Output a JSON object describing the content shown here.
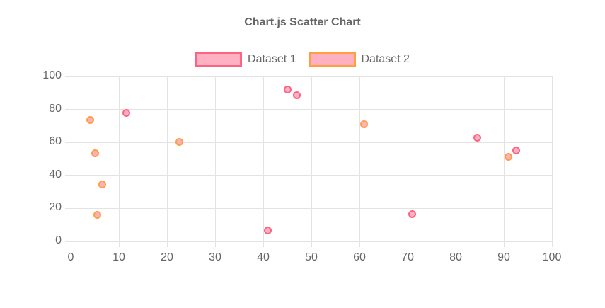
{
  "chart_data": {
    "type": "scatter",
    "title": "Chart.js Scatter Chart",
    "xlabel": "",
    "ylabel": "",
    "xlim": [
      0,
      100
    ],
    "ylim": [
      0,
      100
    ],
    "x_ticks": [
      0,
      10,
      20,
      30,
      40,
      50,
      60,
      70,
      80,
      90,
      100
    ],
    "y_ticks": [
      0,
      20,
      40,
      60,
      80,
      100
    ],
    "grid": true,
    "legend_position": "top",
    "title_color": "#666666",
    "tick_label_color": "#666666",
    "grid_color": "#e3e3e3",
    "series": [
      {
        "name": "Dataset 1",
        "border_color": "#FF6384",
        "fill_color": "#FFB1C1",
        "points": [
          {
            "x": 11.5,
            "y": 78
          },
          {
            "x": 41,
            "y": 6.5
          },
          {
            "x": 45,
            "y": 92
          },
          {
            "x": 47,
            "y": 88.5
          },
          {
            "x": 71,
            "y": 16.5
          },
          {
            "x": 84.5,
            "y": 63
          },
          {
            "x": 92.5,
            "y": 55
          }
        ]
      },
      {
        "name": "Dataset 2",
        "border_color": "#FF9F40",
        "fill_color": "#FFB1C1",
        "points": [
          {
            "x": 4,
            "y": 73.5
          },
          {
            "x": 5,
            "y": 53.5
          },
          {
            "x": 5.5,
            "y": 16
          },
          {
            "x": 6.5,
            "y": 34.5
          },
          {
            "x": 22.5,
            "y": 60.5
          },
          {
            "x": 61,
            "y": 71
          },
          {
            "x": 91,
            "y": 51.5
          }
        ]
      }
    ]
  }
}
